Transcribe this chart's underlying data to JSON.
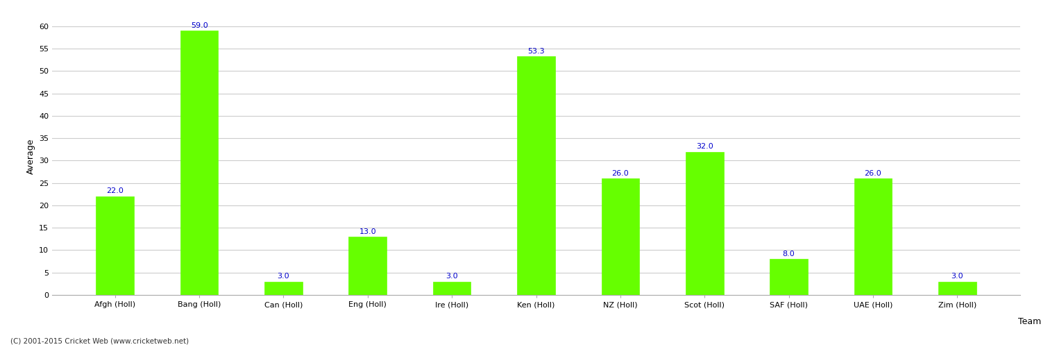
{
  "categories": [
    "Afgh (Holl)",
    "Bang (Holl)",
    "Can (Holl)",
    "Eng (Holl)",
    "Ire (Holl)",
    "Ken (Holl)",
    "NZ (Holl)",
    "Scot (Holl)",
    "SAF (Holl)",
    "UAE (Holl)",
    "Zim (Holl)"
  ],
  "values": [
    22.0,
    59.0,
    3.0,
    13.0,
    3.0,
    53.3,
    26.0,
    32.0,
    8.0,
    26.0,
    3.0
  ],
  "bar_color": "#66ff00",
  "bar_edge_color": "#66ff00",
  "label_color": "#0000cc",
  "xlabel": "Team",
  "ylabel": "Average",
  "ylim": [
    0,
    62
  ],
  "yticks": [
    0,
    5,
    10,
    15,
    20,
    25,
    30,
    35,
    40,
    45,
    50,
    55,
    60
  ],
  "grid_color": "#cccccc",
  "background_color": "#ffffff",
  "fig_width": 15.0,
  "fig_height": 5.0,
  "footnote": "(C) 2001-2015 Cricket Web (www.cricketweb.net)"
}
